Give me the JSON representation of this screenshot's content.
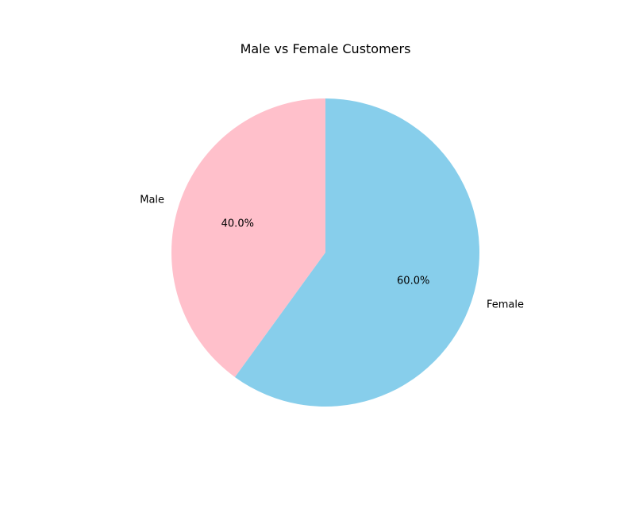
{
  "chart_data": {
    "type": "pie",
    "title": "Male vs Female Customers",
    "slices": [
      {
        "label": "Male",
        "value": 40.0,
        "pct_label": "40.0%",
        "color": "#FFC0CB"
      },
      {
        "label": "Female",
        "value": 60.0,
        "pct_label": "60.0%",
        "color": "#87CEEB"
      }
    ],
    "start_angle_deg": 90,
    "direction": "counterclockwise"
  }
}
